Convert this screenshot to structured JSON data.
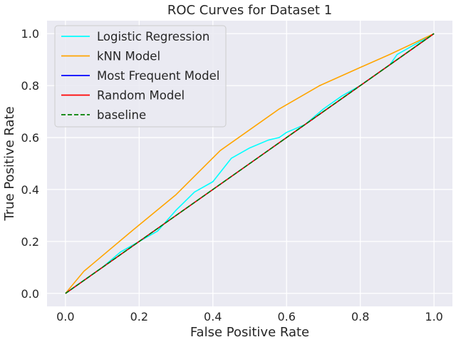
{
  "chart_data": {
    "type": "line",
    "title": "ROC Curves for Dataset 1",
    "xlabel": "False Positive Rate",
    "ylabel": "True Positive Rate",
    "xlim": [
      -0.05,
      1.05
    ],
    "ylim": [
      -0.05,
      1.05
    ],
    "xticks": [
      "0.0",
      "0.2",
      "0.4",
      "0.6",
      "0.8",
      "1.0"
    ],
    "yticks": [
      "0.0",
      "0.2",
      "0.4",
      "0.6",
      "0.8",
      "1.0"
    ],
    "grid": true,
    "legend_position": "top-left",
    "background": "#eaeaf2",
    "series": [
      {
        "name": "Logistic Regression",
        "color": "#00ffff",
        "dash": "solid",
        "x": [
          0.0,
          0.05,
          0.1,
          0.15,
          0.2,
          0.25,
          0.3,
          0.35,
          0.4,
          0.45,
          0.5,
          0.55,
          0.58,
          0.6,
          0.65,
          0.7,
          0.75,
          0.8,
          0.85,
          0.88,
          0.9,
          0.95,
          1.0
        ],
        "y": [
          0.0,
          0.05,
          0.1,
          0.16,
          0.2,
          0.24,
          0.32,
          0.39,
          0.43,
          0.52,
          0.56,
          0.59,
          0.6,
          0.62,
          0.65,
          0.71,
          0.76,
          0.8,
          0.85,
          0.88,
          0.92,
          0.96,
          1.0
        ]
      },
      {
        "name": "kNN Model",
        "color": "#ffa500",
        "dash": "solid",
        "x": [
          0.0,
          0.05,
          0.18,
          0.3,
          0.42,
          0.58,
          0.69,
          0.8,
          0.88,
          1.0
        ],
        "y": [
          0.0,
          0.085,
          0.24,
          0.38,
          0.55,
          0.71,
          0.8,
          0.87,
          0.92,
          1.0
        ]
      },
      {
        "name": "Most Frequent Model",
        "color": "#0000ff",
        "dash": "solid",
        "x": [
          0.0,
          1.0
        ],
        "y": [
          0.0,
          1.0
        ]
      },
      {
        "name": "Random Model",
        "color": "#ff0000",
        "dash": "solid",
        "x": [
          0.0,
          1.0
        ],
        "y": [
          0.0,
          1.0
        ]
      },
      {
        "name": "baseline",
        "color": "#008000",
        "dash": "dashed",
        "x": [
          0.0,
          1.0
        ],
        "y": [
          0.0,
          1.0
        ]
      }
    ]
  }
}
